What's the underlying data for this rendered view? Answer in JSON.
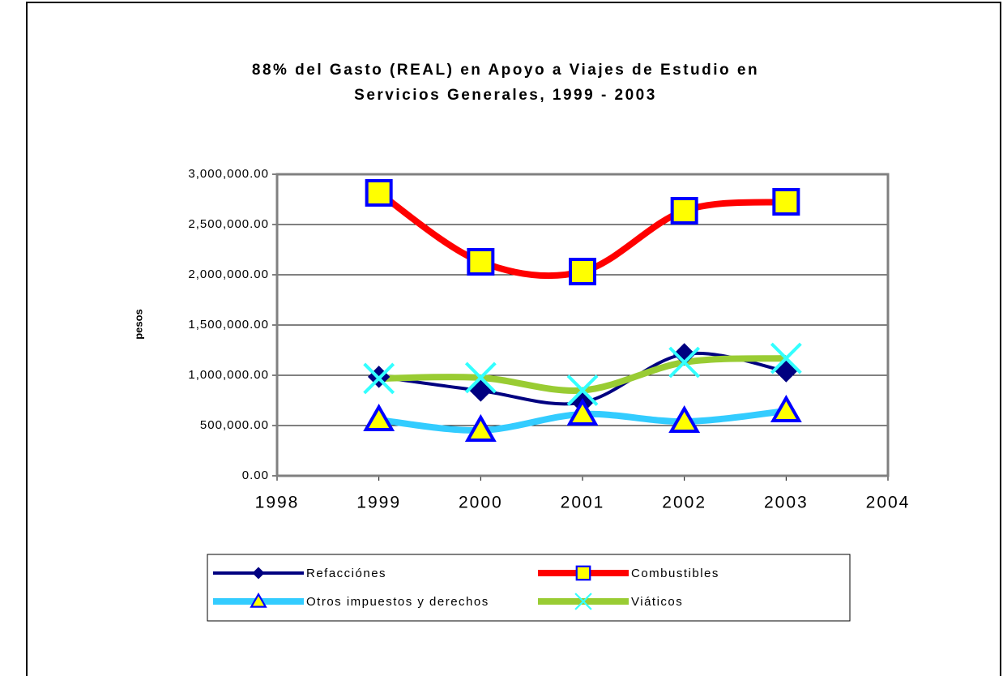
{
  "chart_data": {
    "type": "line",
    "title": [
      "88% del Gasto (REAL) en Apoyo a Viajes de Estudio en",
      "Servicios Generales, 1999 - 2003"
    ],
    "ylabel": "pesos",
    "x": [
      1999,
      2000,
      2001,
      2002,
      2003
    ],
    "xlim": [
      1998,
      2004
    ],
    "xticks": [
      1998,
      1999,
      2000,
      2001,
      2002,
      2003,
      2004
    ],
    "ylim": [
      0,
      3000000
    ],
    "yticks": [
      {
        "value": 0,
        "label": "0.00"
      },
      {
        "value": 500000,
        "label": "500,000.00"
      },
      {
        "value": 1000000,
        "label": "1,000,000.00"
      },
      {
        "value": 1500000,
        "label": "1,500,000.00"
      },
      {
        "value": 2000000,
        "label": "2,000,000.00"
      },
      {
        "value": 2500000,
        "label": "2,500,000.00"
      },
      {
        "value": 3000000,
        "label": "3,000,000.00"
      }
    ],
    "grid": true,
    "legend": "bottom",
    "series": [
      {
        "name": "Refacciónes",
        "color": "#000080",
        "marker": "diamond",
        "values": [
          985000,
          847000,
          730000,
          1210000,
          1040000
        ]
      },
      {
        "name": "Combustibles",
        "color": "#ff0000",
        "marker": "square",
        "values": [
          2815000,
          2129000,
          2032000,
          2637000,
          2726000
        ]
      },
      {
        "name": "Otros impuestos y derechos",
        "color": "#33ccff",
        "marker": "triangle",
        "values": [
          556000,
          452000,
          613000,
          540000,
          645000
        ]
      },
      {
        "name": "Viáticos",
        "color": "#99cc33",
        "marker": "x",
        "values": [
          968000,
          976000,
          850000,
          1129000,
          1169000
        ]
      }
    ]
  }
}
